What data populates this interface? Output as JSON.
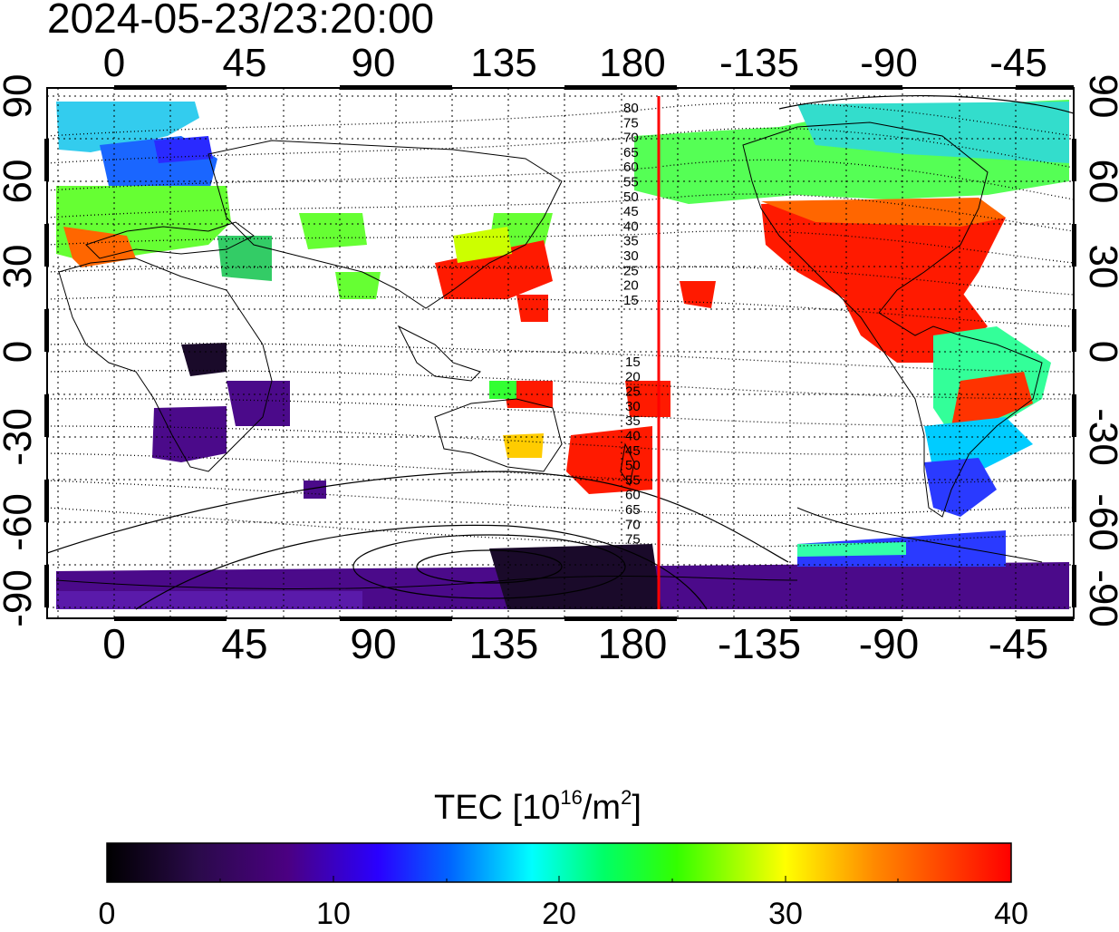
{
  "title": "2024-05-23/23:20:00",
  "map": {
    "lon_ticks": [
      "0",
      "45",
      "90",
      "135",
      "180",
      "-135",
      "-90",
      "-45"
    ],
    "lat_ticks_left": [
      "90",
      "60",
      "30",
      "0",
      "-30",
      "-60",
      "-90"
    ],
    "lat_ticks_right": [
      "90",
      "60",
      "30",
      "0",
      "-30",
      "-60",
      "-90"
    ],
    "marker_line_longitude": 187,
    "marker_line_color": "#ff0000",
    "contour_labels_north": [
      "80",
      "75",
      "70",
      "65",
      "60",
      "55",
      "50",
      "45",
      "40",
      "35",
      "30",
      "25",
      "20",
      "15"
    ],
    "contour_labels_south": [
      "15",
      "20",
      "25",
      "30",
      "35",
      "40",
      "45",
      "50",
      "55",
      "60",
      "65",
      "70",
      "75"
    ]
  },
  "colorbar": {
    "title_prefix": "TEC  [10",
    "title_exp": "16",
    "title_mid": "/m",
    "title_exp2": "2",
    "title_suffix": "]",
    "min": 0,
    "max": 40,
    "ticks": [
      "0",
      "10",
      "20",
      "30",
      "40"
    ],
    "colors": [
      "#000000",
      "#2a0a4a",
      "#4b0082",
      "#2a00ff",
      "#0066ff",
      "#00ffff",
      "#00ff66",
      "#33ff00",
      "#ffff00",
      "#ff8800",
      "#ff0000"
    ]
  }
}
